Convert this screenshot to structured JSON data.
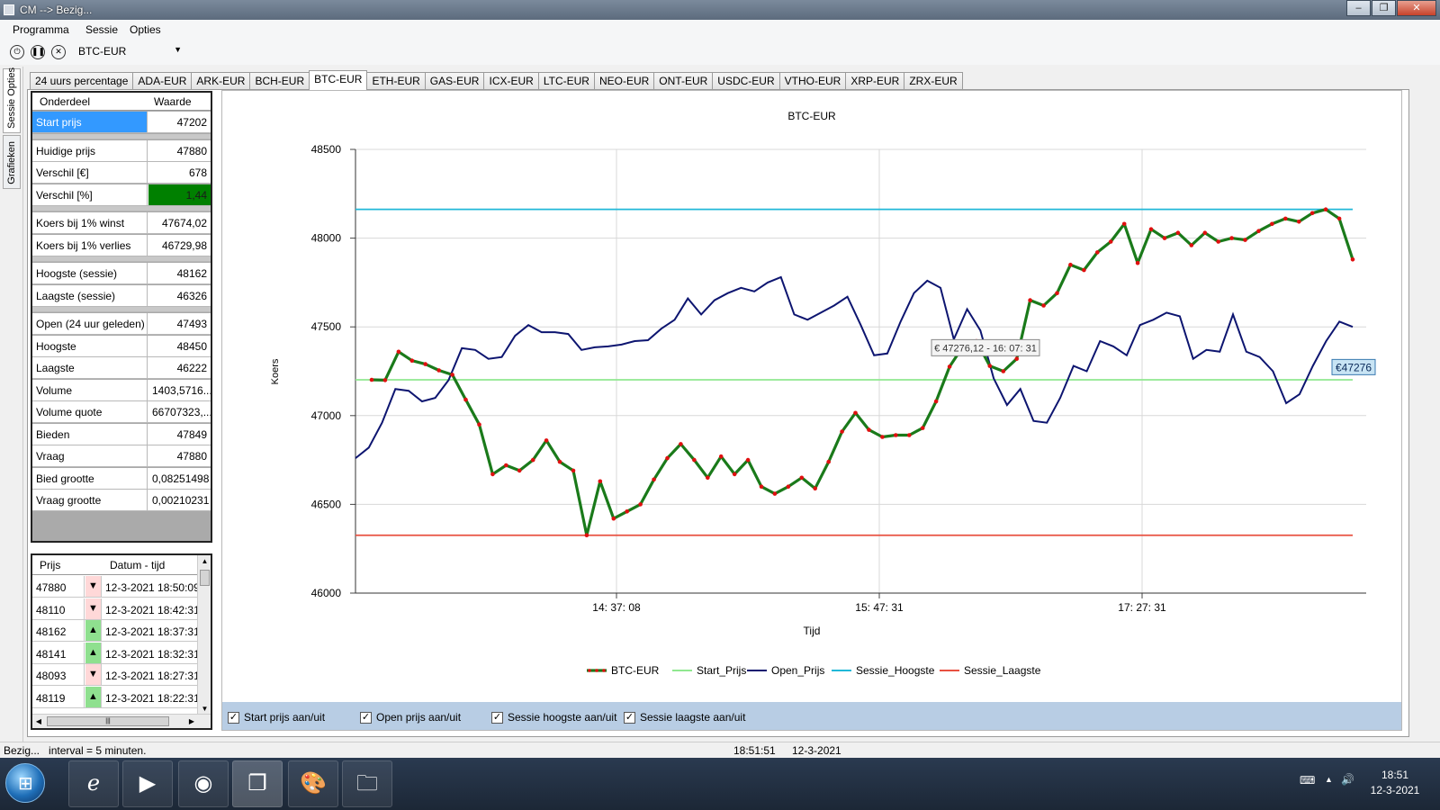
{
  "window": {
    "title": "CM --> Bezig..."
  },
  "menu": [
    "Programma",
    "Sessie",
    "Opties"
  ],
  "toolbar": {
    "pair": "BTC-EUR"
  },
  "side_tabs": [
    "Sessie Opties",
    "Grafieken"
  ],
  "tabs": [
    "24 uurs percentage",
    "ADA-EUR",
    "ARK-EUR",
    "BCH-EUR",
    "BTC-EUR",
    "ETH-EUR",
    "GAS-EUR",
    "ICX-EUR",
    "LTC-EUR",
    "NEO-EUR",
    "ONT-EUR",
    "USDC-EUR",
    "VTHO-EUR",
    "XRP-EUR",
    "ZRX-EUR"
  ],
  "active_tab": "BTC-EUR",
  "info": {
    "headers": [
      "Onderdeel",
      "Waarde"
    ],
    "rows": [
      {
        "k": "Start prijs",
        "v": "47202"
      },
      {
        "k": "Huidige prijs",
        "v": "47880"
      },
      {
        "k": "Verschil [€]",
        "v": "678"
      },
      {
        "k": "Verschil [%]",
        "v": "1,44"
      },
      {
        "k": "Koers bij 1% winst",
        "v": "47674,02"
      },
      {
        "k": "Koers bij 1% verlies",
        "v": "46729,98"
      },
      {
        "k": "Hoogste (sessie)",
        "v": "48162"
      },
      {
        "k": "Laagste (sessie)",
        "v": "46326"
      },
      {
        "k": "Open (24 uur geleden)",
        "v": "47493"
      },
      {
        "k": "Hoogste",
        "v": "48450"
      },
      {
        "k": "Laagste",
        "v": "46222"
      },
      {
        "k": "Volume",
        "v": "1403,5716..."
      },
      {
        "k": "Volume quote",
        "v": "66707323,..."
      },
      {
        "k": "Bieden",
        "v": "47849"
      },
      {
        "k": "Vraag",
        "v": "47880"
      },
      {
        "k": "Bied grootte",
        "v": "0,08251498"
      },
      {
        "k": "Vraag grootte",
        "v": "0,00210231"
      }
    ]
  },
  "history": {
    "headers": [
      "Prijs",
      "Datum - tijd"
    ],
    "rows": [
      {
        "p": "47880",
        "dir": "down",
        "d": "12-3-2021 18:50:09"
      },
      {
        "p": "48110",
        "dir": "down",
        "d": "12-3-2021 18:42:31"
      },
      {
        "p": "48162",
        "dir": "up",
        "d": "12-3-2021 18:37:31"
      },
      {
        "p": "48141",
        "dir": "up",
        "d": "12-3-2021 18:32:31"
      },
      {
        "p": "48093",
        "dir": "down",
        "d": "12-3-2021 18:27:31"
      },
      {
        "p": "48119",
        "dir": "up",
        "d": "12-3-2021 18:22:31"
      }
    ]
  },
  "chart_data": {
    "type": "line",
    "title": "BTC-EUR",
    "xlabel": "Tijd",
    "ylabel": "Koers",
    "ylim": [
      46000,
      48500
    ],
    "yticks": [
      46000,
      46500,
      47000,
      47500,
      48000,
      48500
    ],
    "xticks": [
      "14: 37: 08",
      "15: 47: 31",
      "17: 27: 31"
    ],
    "grid": true,
    "legend_position": "bottom",
    "series": [
      {
        "name": "BTC-EUR",
        "color": "#1a7a1a",
        "marker_color": "#e01010",
        "values": [
          47202,
          47200,
          47360,
          47310,
          47290,
          47255,
          47230,
          47090,
          46950,
          46670,
          46720,
          46690,
          46750,
          46860,
          46740,
          46690,
          46326,
          46630,
          46420,
          46460,
          46500,
          46640,
          46760,
          46840,
          46750,
          46650,
          46770,
          46670,
          46750,
          46600,
          46560,
          46600,
          46650,
          46590,
          46740,
          46910,
          47015,
          46920,
          46880,
          46890,
          46890,
          46930,
          47080,
          47276,
          47390,
          47420,
          47280,
          47250,
          47320,
          47650,
          47620,
          47690,
          47850,
          47820,
          47920,
          47980,
          48080,
          47860,
          48050,
          48000,
          48030,
          47960,
          48030,
          47980,
          48000,
          47990,
          48040,
          48080,
          48110,
          48093,
          48141,
          48162,
          48110,
          47880
        ]
      },
      {
        "name": "Start_Prijs",
        "color": "#90e890",
        "values": [
          47202,
          47202
        ]
      },
      {
        "name": "Open_Prijs",
        "color": "#0d1570",
        "values": [
          46760,
          46820,
          46960,
          47150,
          47140,
          47080,
          47100,
          47200,
          47380,
          47370,
          47320,
          47330,
          47450,
          47510,
          47470,
          47470,
          47460,
          47370,
          47385,
          47390,
          47400,
          47420,
          47425,
          47490,
          47540,
          47660,
          47570,
          47650,
          47690,
          47720,
          47700,
          47750,
          47780,
          47570,
          47540,
          47580,
          47620,
          47670,
          47510,
          47340,
          47350,
          47530,
          47690,
          47760,
          47720,
          47430,
          47600,
          47480,
          47210,
          47060,
          47150,
          46970,
          46960,
          47100,
          47280,
          47250,
          47420,
          47390,
          47340,
          47510,
          47540,
          47580,
          47560,
          47320,
          47370,
          47360,
          47570,
          47360,
          47330,
          47250,
          47070,
          47120,
          47280,
          47420,
          47530,
          47500
        ]
      },
      {
        "name": "Sessie_Hoogste",
        "color": "#20b8d8",
        "values": [
          48162,
          48162
        ]
      },
      {
        "name": "Sessie_Laagste",
        "color": "#e85040",
        "values": [
          46326,
          46326
        ]
      }
    ],
    "tooltip": "€ 47276,12 - 16: 07: 31",
    "last_value_label": "€47276"
  },
  "checkboxes": [
    "Start prijs aan/uit",
    "Open prijs aan/uit",
    "Sessie hoogste aan/uit",
    "Sessie laagste aan/uit"
  ],
  "status": {
    "left": "Bezig...   interval = 5 minuten.",
    "time": "18:51:51",
    "date": "12-3-2021"
  },
  "taskbar": {
    "time": "18:51",
    "date": "12-3-2021"
  },
  "colors": {
    "accent": "#3399ff",
    "positive": "#008000",
    "bottombar": "#b8cde4"
  }
}
